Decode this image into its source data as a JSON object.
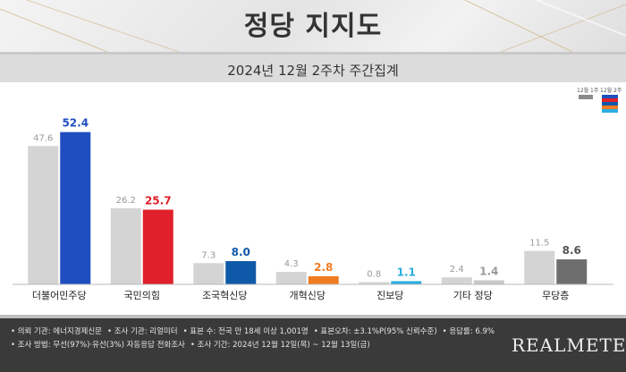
{
  "header": {
    "title": "정당 지지도"
  },
  "subheader": {
    "title": "2024년 12월 2주차 주간집계"
  },
  "legend": {
    "prev_label": "12월 1주",
    "curr_label": "12월 2주"
  },
  "chart_data": {
    "type": "bar",
    "title": "정당 지지도",
    "subtitle": "2024년 12월 2주차 주간집계",
    "categories": [
      "더불어민주당",
      "국민의힘",
      "조국혁신당",
      "개혁신당",
      "진보당",
      "기타 정당",
      "무당층"
    ],
    "series": [
      {
        "name": "12월 1주",
        "values": [
          47.6,
          26.2,
          7.3,
          4.3,
          0.8,
          2.4,
          11.5
        ],
        "color": "#d4d4d4"
      },
      {
        "name": "12월 2주",
        "values": [
          52.4,
          25.7,
          8.0,
          2.8,
          1.1,
          1.4,
          8.6
        ],
        "colors": [
          "#1f4fbf",
          "#e0202a",
          "#0f5aa8",
          "#f07c21",
          "#2aaee0",
          "#c8c8c8",
          "#6e6e6e"
        ],
        "label_colors": [
          "#1f4fbf",
          "#e0202a",
          "#0f5aa8",
          "#f07c21",
          "#2aaee0",
          "#9a9a9a",
          "#555555"
        ]
      }
    ],
    "ylim": [
      0,
      60
    ],
    "grid": false,
    "legend": "top-right"
  },
  "footer": {
    "line1": [
      "• 의뢰 기관: 에너지경제신문",
      "• 조사 기관: 리얼미터",
      "• 표본 수: 전국 만 18세 이상 1,001명",
      "• 표본오차: ±3.1%P(95% 신뢰수준)",
      "• 응답률: 6.9%"
    ],
    "line2": [
      "• 조사 방법: 무선(97%)·유선(3%) 자동응답 전화조사",
      "• 조사 기간: 2024년 12월 12일(목) ~ 12월 13일(금)"
    ],
    "logo": "REALMETER"
  }
}
